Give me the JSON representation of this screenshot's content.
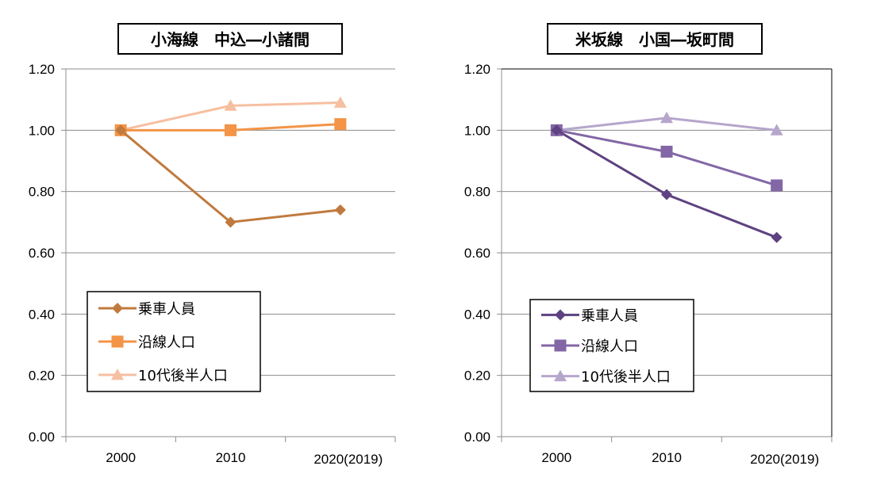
{
  "chart_data": [
    {
      "type": "line",
      "title": "小海線　中込―小諸間",
      "categories": [
        "2000",
        "2010",
        "2020(2019)"
      ],
      "ylim": [
        0,
        1.2
      ],
      "yticks": [
        "0.00",
        "0.20",
        "0.40",
        "0.60",
        "0.80",
        "1.00",
        "1.20"
      ],
      "grid": true,
      "legend_position": "bottom-left",
      "series": [
        {
          "name": "乗車人員",
          "values": [
            1.0,
            0.7,
            0.74
          ],
          "color": "#c07a3e",
          "marker": "diamond"
        },
        {
          "name": "沿線人口",
          "values": [
            1.0,
            1.0,
            1.02
          ],
          "color": "#f39446",
          "marker": "square"
        },
        {
          "name": "10代後半人口",
          "values": [
            1.0,
            1.08,
            1.09
          ],
          "color": "#f6bfa0",
          "marker": "triangle"
        }
      ]
    },
    {
      "type": "line",
      "title": "米坂線　小国―坂町間",
      "categories": [
        "2000",
        "2010",
        "2020(2019)"
      ],
      "ylim": [
        0,
        1.2
      ],
      "yticks": [
        "0.00",
        "0.20",
        "0.40",
        "0.60",
        "0.80",
        "1.00",
        "1.20"
      ],
      "grid": true,
      "legend_position": "bottom-left",
      "series": [
        {
          "name": "乗車人員",
          "values": [
            1.0,
            0.79,
            0.65
          ],
          "color": "#5e4281",
          "marker": "diamond"
        },
        {
          "name": "沿線人口",
          "values": [
            1.0,
            0.93,
            0.82
          ],
          "color": "#8366a6",
          "marker": "square"
        },
        {
          "name": "10代後半人口",
          "values": [
            1.0,
            1.04,
            1.0
          ],
          "color": "#b6a6cc",
          "marker": "triangle"
        }
      ]
    }
  ]
}
